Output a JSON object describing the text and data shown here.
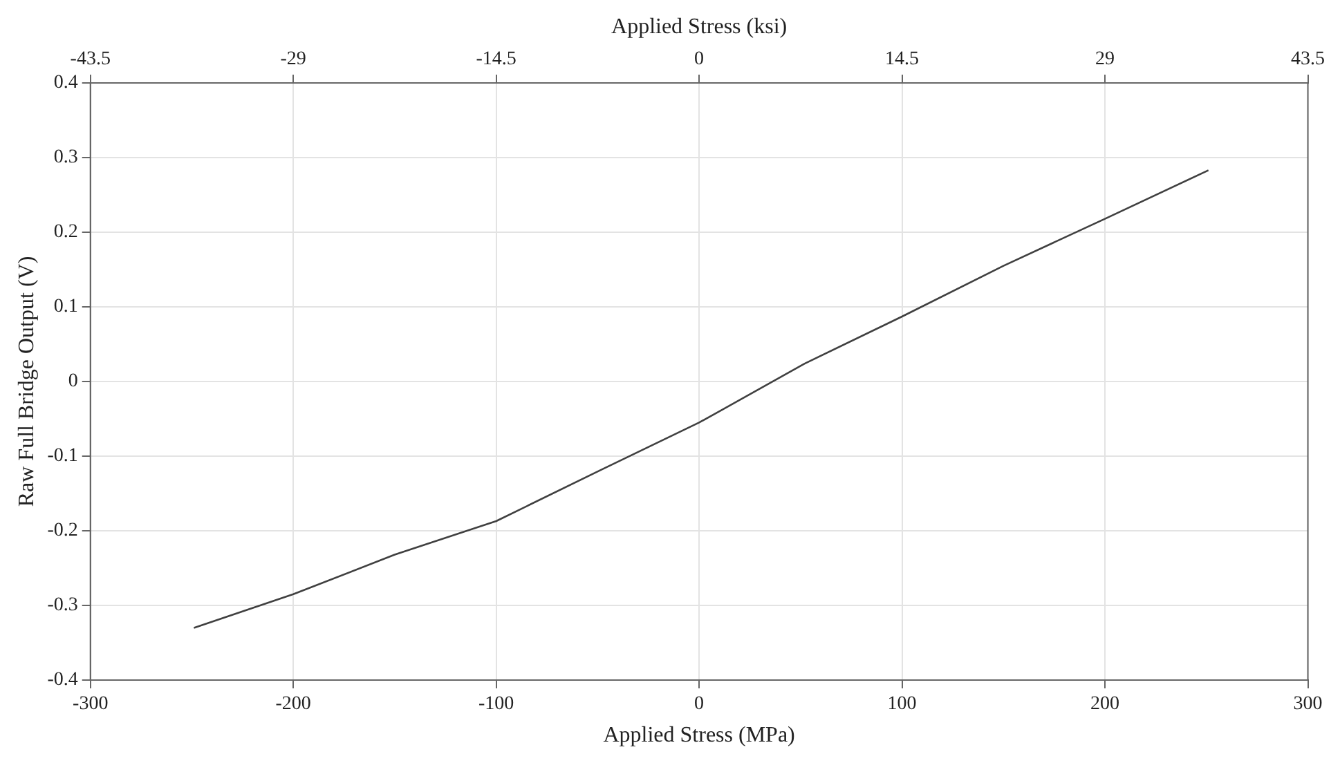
{
  "chart_data": {
    "type": "line",
    "xlabel": "Applied Stress (MPa)",
    "x2label": "Applied Stress (ksi)",
    "ylabel": "Raw Full Bridge Output (V)",
    "x": [
      -249,
      -200,
      -150,
      -100,
      -48,
      0,
      10,
      52,
      100,
      150,
      200,
      251
    ],
    "series": [
      {
        "color": "#404040",
        "values": [
          -0.33,
          -0.285,
          -0.232,
          -0.187,
          -0.118,
          -0.055,
          -0.04,
          0.024,
          0.087,
          0.155,
          0.218,
          0.283
        ]
      }
    ],
    "xlim": [
      -300,
      300
    ],
    "xticks": [
      -300,
      -200,
      -100,
      0,
      100,
      200,
      300
    ],
    "x2lim": [
      -43.5,
      43.5
    ],
    "x2ticks": [
      -43.5,
      -29,
      -14.5,
      0,
      14.5,
      29,
      43.5
    ],
    "ylim": [
      -0.4,
      0.4
    ],
    "yticks": [
      -0.4,
      -0.3,
      -0.2,
      -0.1,
      0,
      0.1,
      0.2,
      0.3,
      0.4
    ],
    "grid": true,
    "legend": false,
    "marker": "none",
    "line_style": "solid"
  }
}
